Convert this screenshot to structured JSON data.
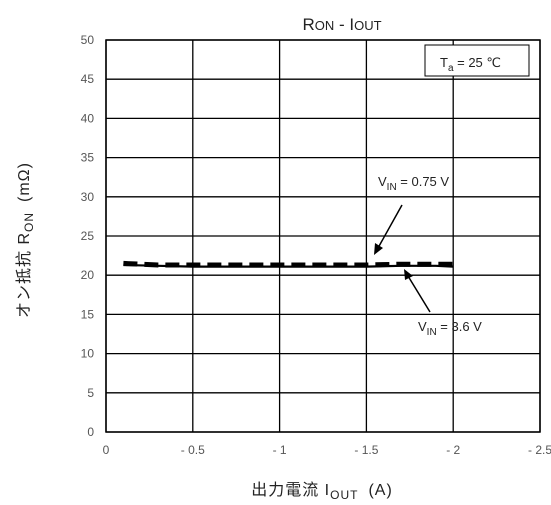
{
  "chart_data": {
    "type": "line",
    "title_main": "R",
    "title_main_sub": "ON",
    "title_sep": " - I",
    "title_sep_sub": "OUT",
    "ylabel_main": "オン抵抗 R",
    "ylabel_sub": "ON",
    "ylabel_unit": "(mΩ)",
    "xlabel_main": "出力電流 I",
    "xlabel_sub": "OUT",
    "xlabel_unit": "(A)",
    "xlim": [
      0,
      -2.5
    ],
    "ylim": [
      0,
      50
    ],
    "x_tick_values": [
      0,
      -0.5,
      -1,
      -1.5,
      -2,
      -2.5
    ],
    "x_tick_labels": [
      "0",
      "- 0.5",
      "- 1",
      "- 1.5",
      "- 2",
      "- 2.5"
    ],
    "y_tick_values": [
      0,
      5,
      10,
      15,
      20,
      25,
      30,
      35,
      40,
      45,
      50
    ],
    "y_tick_labels": [
      "0",
      "5",
      "10",
      "15",
      "20",
      "25",
      "30",
      "35",
      "40",
      "45",
      "50"
    ],
    "grid": true,
    "condition": {
      "prefix": "T",
      "sub": "a",
      "suffix": " = 25 ℃"
    },
    "series": [
      {
        "label_prefix": "V",
        "label_sub": "IN",
        "label_suffix": " = 0.75 V",
        "style": "dashed",
        "x": [
          -0.1,
          -0.3,
          -0.5,
          -0.7,
          -0.9,
          -1.1,
          -1.3,
          -1.5,
          -1.7,
          -1.9,
          -2.0
        ],
        "y": [
          21.5,
          21.3,
          21.3,
          21.3,
          21.3,
          21.3,
          21.3,
          21.3,
          21.4,
          21.4,
          21.4
        ]
      },
      {
        "label_prefix": "V",
        "label_sub": "IN",
        "label_suffix": " = 3.6 V",
        "style": "solid",
        "x": [
          -0.1,
          -0.3,
          -0.5,
          -0.7,
          -0.9,
          -1.1,
          -1.3,
          -1.5,
          -1.7,
          -1.9,
          -2.0
        ],
        "y": [
          21.3,
          21.2,
          21.1,
          21.1,
          21.1,
          21.1,
          21.1,
          21.1,
          21.2,
          21.2,
          21.1
        ]
      }
    ],
    "colors": {
      "line": "#000000",
      "grid": "#000000",
      "tick_text": "#555555"
    }
  }
}
